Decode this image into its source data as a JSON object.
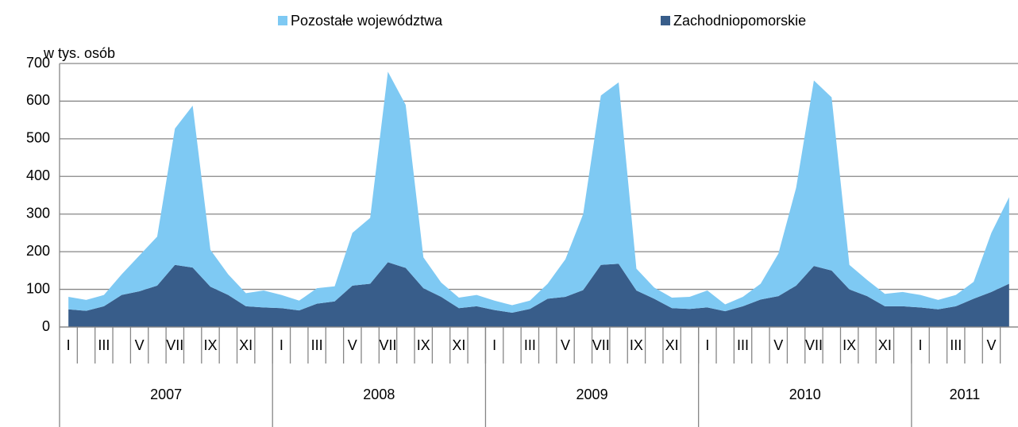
{
  "chart_data": {
    "type": "stacked_area",
    "y_label": "w tys. osób",
    "categories": [
      "I",
      null,
      "III",
      null,
      "V",
      null,
      "VII",
      null,
      "IX",
      null,
      "XI",
      null,
      "I",
      null,
      "III",
      null,
      "V",
      null,
      "VII",
      null,
      "IX",
      null,
      "XI",
      null,
      "I",
      null,
      "III",
      null,
      "V",
      null,
      "VII",
      null,
      "IX",
      null,
      "XI",
      null,
      "I",
      null,
      "III",
      null,
      "V",
      null,
      "VII",
      null,
      "IX",
      null,
      "XI",
      null,
      "I",
      null,
      "III",
      null,
      "V",
      null
    ],
    "groups": [
      {
        "name": "2007",
        "count": 12
      },
      {
        "name": "2008",
        "count": 12
      },
      {
        "name": "2009",
        "count": 12
      },
      {
        "name": "2010",
        "count": 12
      },
      {
        "name": "2011",
        "count": 6
      }
    ],
    "series": [
      {
        "name": "Zachodniopomorskie",
        "color": "#385d8a",
        "values": [
          47,
          43,
          55,
          85,
          95,
          110,
          165,
          158,
          107,
          85,
          55,
          52,
          50,
          44,
          62,
          68,
          110,
          115,
          172,
          157,
          103,
          80,
          50,
          55,
          45,
          38,
          48,
          75,
          80,
          98,
          165,
          168,
          97,
          75,
          50,
          48,
          52,
          42,
          55,
          73,
          82,
          110,
          162,
          150,
          100,
          82,
          55,
          55,
          52,
          47,
          55,
          75,
          93,
          115
        ]
      },
      {
        "name": "Pozostałe województwa",
        "color": "#7ec9f3",
        "values": [
          33,
          29,
          30,
          55,
          95,
          130,
          362,
          430,
          98,
          55,
          35,
          45,
          35,
          26,
          41,
          40,
          140,
          175,
          506,
          433,
          82,
          38,
          28,
          30,
          25,
          20,
          22,
          40,
          100,
          202,
          450,
          482,
          58,
          30,
          28,
          32,
          45,
          18,
          25,
          42,
          113,
          260,
          493,
          460,
          65,
          43,
          33,
          38,
          33,
          25,
          30,
          45,
          157,
          230
        ]
      }
    ],
    "ylim": [
      0,
      700
    ],
    "yticks": [
      0,
      100,
      200,
      300,
      400,
      500,
      600,
      700
    ],
    "grid": true
  }
}
